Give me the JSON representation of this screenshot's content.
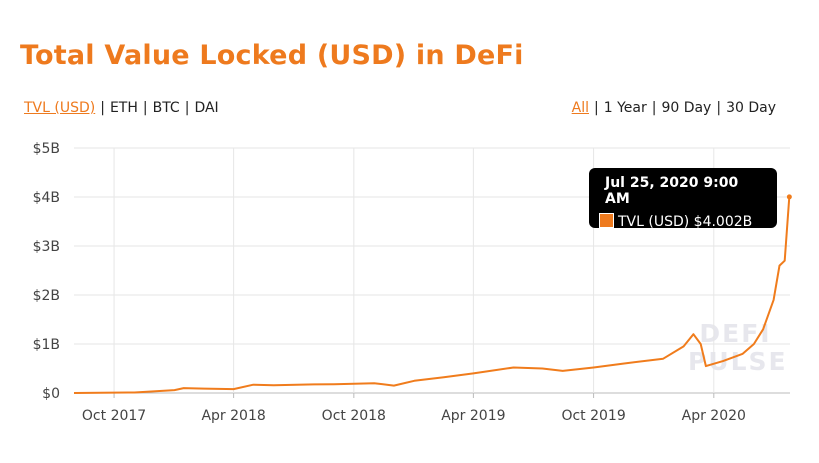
{
  "title": "Total Value Locked (USD) in DeFi",
  "metric_tabs": [
    {
      "label": "TVL (USD)",
      "active": true
    },
    {
      "label": "ETH",
      "active": false
    },
    {
      "label": "BTC",
      "active": false
    },
    {
      "label": "DAI",
      "active": false
    }
  ],
  "range_tabs": [
    {
      "label": "All",
      "active": true
    },
    {
      "label": "1 Year",
      "active": false
    },
    {
      "label": "90 Day",
      "active": false
    },
    {
      "label": "30 Day",
      "active": false
    }
  ],
  "separator": "|",
  "tooltip": {
    "date": "Jul 25, 2020 9:00 AM",
    "label": "TVL (USD) $4.002B"
  },
  "watermark": {
    "line1": "DEFI",
    "line2": "PULSE"
  },
  "colors": {
    "accent": "#ee7a1e",
    "line": "#f07c1c",
    "grid": "#e6e6e6"
  },
  "chart_data": {
    "type": "line",
    "title": "Total Value Locked (USD) in DeFi",
    "xlabel": "",
    "ylabel": "",
    "ylim": [
      0,
      5000000000
    ],
    "yticks": [
      0,
      1000000000,
      2000000000,
      3000000000,
      4000000000,
      5000000000
    ],
    "ytick_labels": [
      "$0",
      "$1B",
      "$2B",
      "$3B",
      "$4B",
      "$5B"
    ],
    "xlim": [
      "2017-08-01",
      "2020-07-26"
    ],
    "xticks": [
      "2017-10-01",
      "2018-04-01",
      "2018-10-01",
      "2019-04-01",
      "2019-10-01",
      "2020-04-01"
    ],
    "xtick_labels": [
      "Oct 2017",
      "Apr 2018",
      "Oct 2018",
      "Apr 2019",
      "Oct 2019",
      "Apr 2020"
    ],
    "grid": true,
    "series": [
      {
        "name": "TVL (USD)",
        "x": [
          "2017-08-01",
          "2017-11-01",
          "2018-01-01",
          "2018-01-15",
          "2018-02-15",
          "2018-04-01",
          "2018-05-01",
          "2018-06-01",
          "2018-08-01",
          "2018-09-01",
          "2018-11-01",
          "2018-12-01",
          "2019-01-01",
          "2019-02-15",
          "2019-04-01",
          "2019-06-01",
          "2019-07-15",
          "2019-08-15",
          "2019-10-01",
          "2019-11-15",
          "2020-01-15",
          "2020-02-15",
          "2020-03-01",
          "2020-03-12",
          "2020-03-20",
          "2020-04-15",
          "2020-05-15",
          "2020-06-01",
          "2020-06-15",
          "2020-07-01",
          "2020-07-10",
          "2020-07-18",
          "2020-07-25"
        ],
        "values": [
          0,
          10000000,
          60000000,
          100000000,
          90000000,
          80000000,
          170000000,
          160000000,
          175000000,
          180000000,
          200000000,
          150000000,
          250000000,
          320000000,
          400000000,
          520000000,
          500000000,
          450000000,
          520000000,
          600000000,
          700000000,
          950000000,
          1200000000,
          1000000000,
          550000000,
          650000000,
          800000000,
          1000000000,
          1300000000,
          1900000000,
          2600000000,
          2700000000,
          4002000000
        ]
      }
    ]
  }
}
